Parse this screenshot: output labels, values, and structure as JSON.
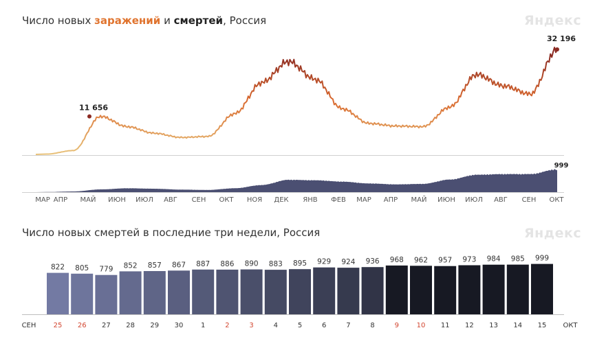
{
  "chart1": {
    "title_prefix": "Число новых ",
    "title_cases": "заражений",
    "title_mid": " и ",
    "title_deaths": "смертей",
    "title_suffix": ", Россия",
    "watermark": "Яндекс",
    "peak_label": "11 656",
    "last_label": "32 196",
    "deaths_last_label": "999",
    "colors": {
      "low": "#e8c27a",
      "mid": "#d9692f",
      "high": "#8b2a22",
      "deaths_fill": "#4b4f72"
    }
  },
  "chart_data": [
    {
      "type": "line",
      "title": "Число новых заражений и смертей, Россия",
      "x_ticks": [
        "МАР",
        "АПР",
        "МАЙ",
        "ИЮН",
        "ИЮЛ",
        "АВГ",
        "СЕН",
        "ОКТ",
        "НОЯ",
        "ДЕК",
        "ЯНВ",
        "ФЕВ",
        "МАР",
        "АПР",
        "МАЙ",
        "ИЮН",
        "ИЮЛ",
        "АВГ",
        "СЕН",
        "ОКТ"
      ],
      "series": [
        {
          "kind": "cases",
          "x": [
            "МАР",
            "АПР",
            "МАЙ",
            "ИЮН",
            "ИЮЛ",
            "АВГ",
            "СЕН",
            "ОКТ",
            "НОЯ",
            "ДЕК",
            "ЯНВ",
            "ФЕВ",
            "МАР",
            "АПР",
            "МАЙ",
            "ИЮН",
            "ИЮЛ",
            "АВГ",
            "СЕН",
            "ОКТ"
          ],
          "values": [
            100,
            1200,
            11656,
            8500,
            6500,
            5200,
            5500,
            12500,
            22000,
            28500,
            23000,
            14000,
            9500,
            8700,
            8500,
            14500,
            24500,
            21000,
            18500,
            32196
          ]
        },
        {
          "kind": "deaths",
          "x": [
            "МАР",
            "АПР",
            "МАЙ",
            "ИЮН",
            "ИЮЛ",
            "АВГ",
            "СЕН",
            "ОКТ",
            "НОЯ",
            "ДЕК",
            "ЯНВ",
            "ФЕВ",
            "МАР",
            "АПР",
            "МАЙ",
            "ИЮН",
            "ИЮЛ",
            "АВГ",
            "СЕН",
            "ОКТ"
          ],
          "values": [
            5,
            30,
            120,
            170,
            150,
            110,
            95,
            170,
            310,
            540,
            520,
            460,
            380,
            340,
            360,
            550,
            760,
            790,
            790,
            999
          ]
        }
      ],
      "annotations": [
        {
          "label": "11 656",
          "x": "МАЙ",
          "value": 11656
        },
        {
          "label": "32 196",
          "x": "ОКТ",
          "value": 32196
        },
        {
          "label": "999",
          "x": "ОКТ",
          "value": 999
        }
      ]
    },
    {
      "type": "bar",
      "title": "Число новых смертей в последние три недели, Россия",
      "month_start": "СЕН",
      "month_end": "ОКТ",
      "categories": [
        "25",
        "26",
        "27",
        "28",
        "29",
        "30",
        "1",
        "2",
        "3",
        "4",
        "5",
        "6",
        "7",
        "8",
        "9",
        "10",
        "11",
        "12",
        "13",
        "14",
        "15"
      ],
      "values": [
        822,
        805,
        779,
        852,
        857,
        867,
        887,
        886,
        890,
        883,
        895,
        929,
        924,
        936,
        968,
        962,
        957,
        973,
        984,
        985,
        999
      ],
      "weekend_flags": [
        true,
        true,
        false,
        false,
        false,
        false,
        false,
        true,
        true,
        false,
        false,
        false,
        false,
        false,
        true,
        true,
        false,
        false,
        false,
        false,
        false
      ],
      "colors": {
        "light": "#737aa3",
        "dark": "#171923",
        "weekend_label": "#d2452f",
        "label": "#333333"
      }
    }
  ],
  "chart2": {
    "title": "Число новых смертей в последние три недели, Россия",
    "watermark": "Яндекс"
  }
}
